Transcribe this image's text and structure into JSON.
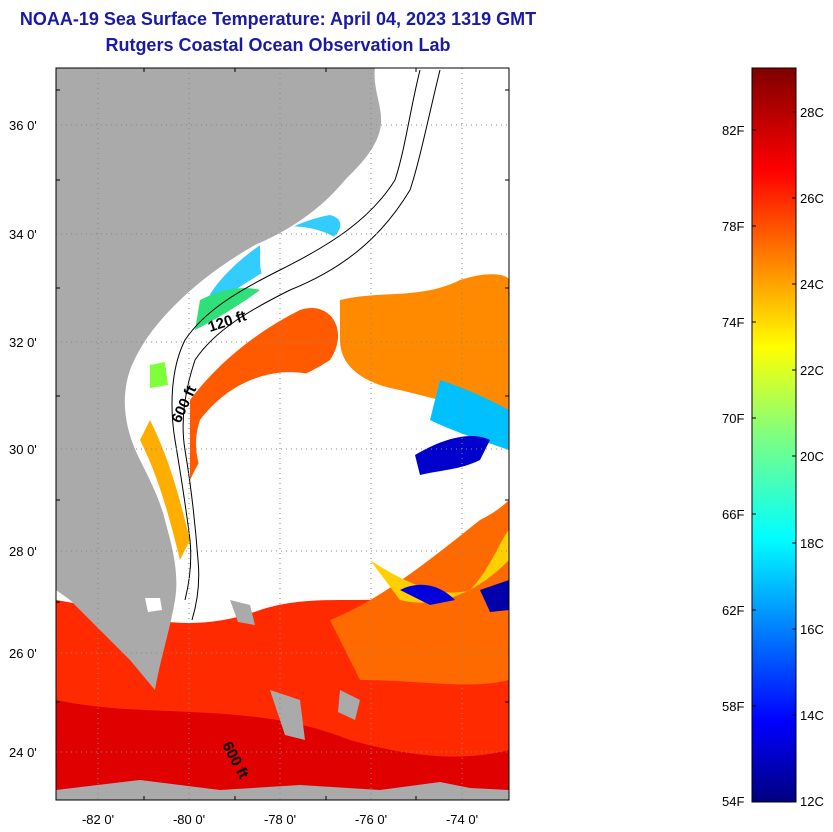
{
  "title_line1": "NOAA-19 Sea Surface Temperature:  April 04, 2023 1319 GMT",
  "title_line2": "Rutgers Coastal Ocean Observation Lab",
  "map": {
    "lat_labels": [
      "36 0'",
      "34 0'",
      "32 0'",
      "30 0'",
      "28 0'",
      "26 0'",
      "24 0'"
    ],
    "lon_labels": [
      "-82 0'",
      "-80 0'",
      "-78 0'",
      "-76 0'",
      "-74 0'"
    ],
    "contour_labels": [
      "120 ft",
      "600 ft",
      "600 ft"
    ],
    "colors": {
      "land": "#aaaaaa",
      "cloud": "#ffffff",
      "frame": "#000000"
    }
  },
  "colorbar": {
    "fahrenheit_labels": [
      "82F",
      "78F",
      "74F",
      "70F",
      "66F",
      "62F",
      "58F",
      "54F"
    ],
    "celsius_labels": [
      "28C",
      "26C",
      "24C",
      "22C",
      "20C",
      "18C",
      "16C",
      "14C",
      "12C"
    ],
    "range_c": [
      12,
      29
    ],
    "colormap": "jet"
  }
}
